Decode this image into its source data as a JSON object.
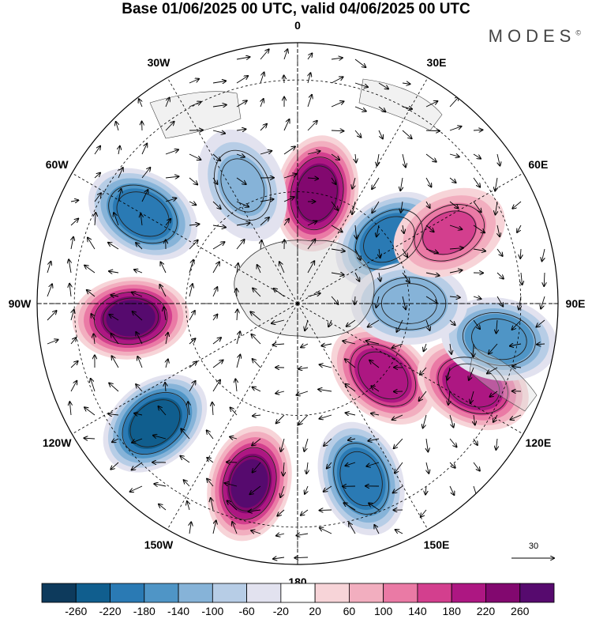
{
  "title": "Base 01/06/2025 00 UTC, valid 04/06/2025 00 UTC",
  "brand": "MODES",
  "brand_mark": "©",
  "longitude_labels": [
    {
      "key": "0",
      "text": "0"
    },
    {
      "key": "30e",
      "text": "30E"
    },
    {
      "key": "60e",
      "text": "60E"
    },
    {
      "key": "90e",
      "text": "90E"
    },
    {
      "key": "120e",
      "text": "120E"
    },
    {
      "key": "150e",
      "text": "150E"
    },
    {
      "key": "180",
      "text": "180"
    },
    {
      "key": "150w",
      "text": "150W"
    },
    {
      "key": "120w",
      "text": "120W"
    },
    {
      "key": "90w",
      "text": "90W"
    },
    {
      "key": "60w",
      "text": "60W"
    },
    {
      "key": "30w",
      "text": "30W"
    }
  ],
  "reference_vector": "30",
  "colorbar": {
    "ticks": [
      "-260",
      "-220",
      "-180",
      "-140",
      "-100",
      "-60",
      "-20",
      "20",
      "60",
      "100",
      "140",
      "180",
      "220",
      "260"
    ],
    "colors": [
      "#0d3a5c",
      "#105e8e",
      "#2a7ab4",
      "#4f95c6",
      "#86b3d8",
      "#b7cde6",
      "#e2e2ef",
      "#ffffff",
      "#f7d4d8",
      "#f2aebf",
      "#ea7aa5",
      "#d33f8e",
      "#ad1782",
      "#82086f",
      "#560a6e"
    ]
  },
  "anomalies": [
    {
      "lon": 10,
      "lat": 60,
      "value": 250
    },
    {
      "lon": 55,
      "lat": 60,
      "value": -200
    },
    {
      "lon": -25,
      "lat": 55,
      "value": -110
    },
    {
      "lon": -60,
      "lat": 42,
      "value": -200
    },
    {
      "lon": -95,
      "lat": 45,
      "value": 260
    },
    {
      "lon": -130,
      "lat": 40,
      "value": -250
    },
    {
      "lon": -165,
      "lat": 40,
      "value": 260
    },
    {
      "lon": 160,
      "lat": 40,
      "value": -220
    },
    {
      "lon": 130,
      "lat": 60,
      "value": 200
    },
    {
      "lon": 115,
      "lat": 38,
      "value": 200
    },
    {
      "lon": 100,
      "lat": 35,
      "value": -160
    },
    {
      "lon": 90,
      "lat": 60,
      "value": -140
    },
    {
      "lon": 65,
      "lat": 45,
      "value": 150
    }
  ]
}
